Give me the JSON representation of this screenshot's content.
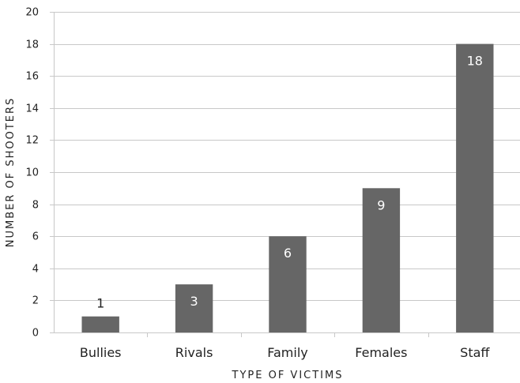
{
  "chart_data": {
    "type": "bar",
    "title": "",
    "xlabel": "TYPE OF VICTIMS",
    "ylabel": "NUMBER OF SHOOTERS",
    "categories": [
      "Bullies",
      "Rivals",
      "Family",
      "Females",
      "Staff"
    ],
    "values": [
      1,
      3,
      6,
      9,
      18
    ],
    "data_labels": [
      "1",
      "3",
      "6",
      "9",
      "18"
    ],
    "ylim": [
      0,
      20
    ],
    "yticks": [
      "0",
      "2",
      "4",
      "6",
      "8",
      "10",
      "12",
      "14",
      "16",
      "18",
      "20"
    ],
    "grid": true,
    "legend": "none",
    "colors": {
      "bar": "#666666",
      "grid": "#c8c8c8",
      "label_inside": "#ffffff",
      "label_outside": "#222222"
    }
  }
}
